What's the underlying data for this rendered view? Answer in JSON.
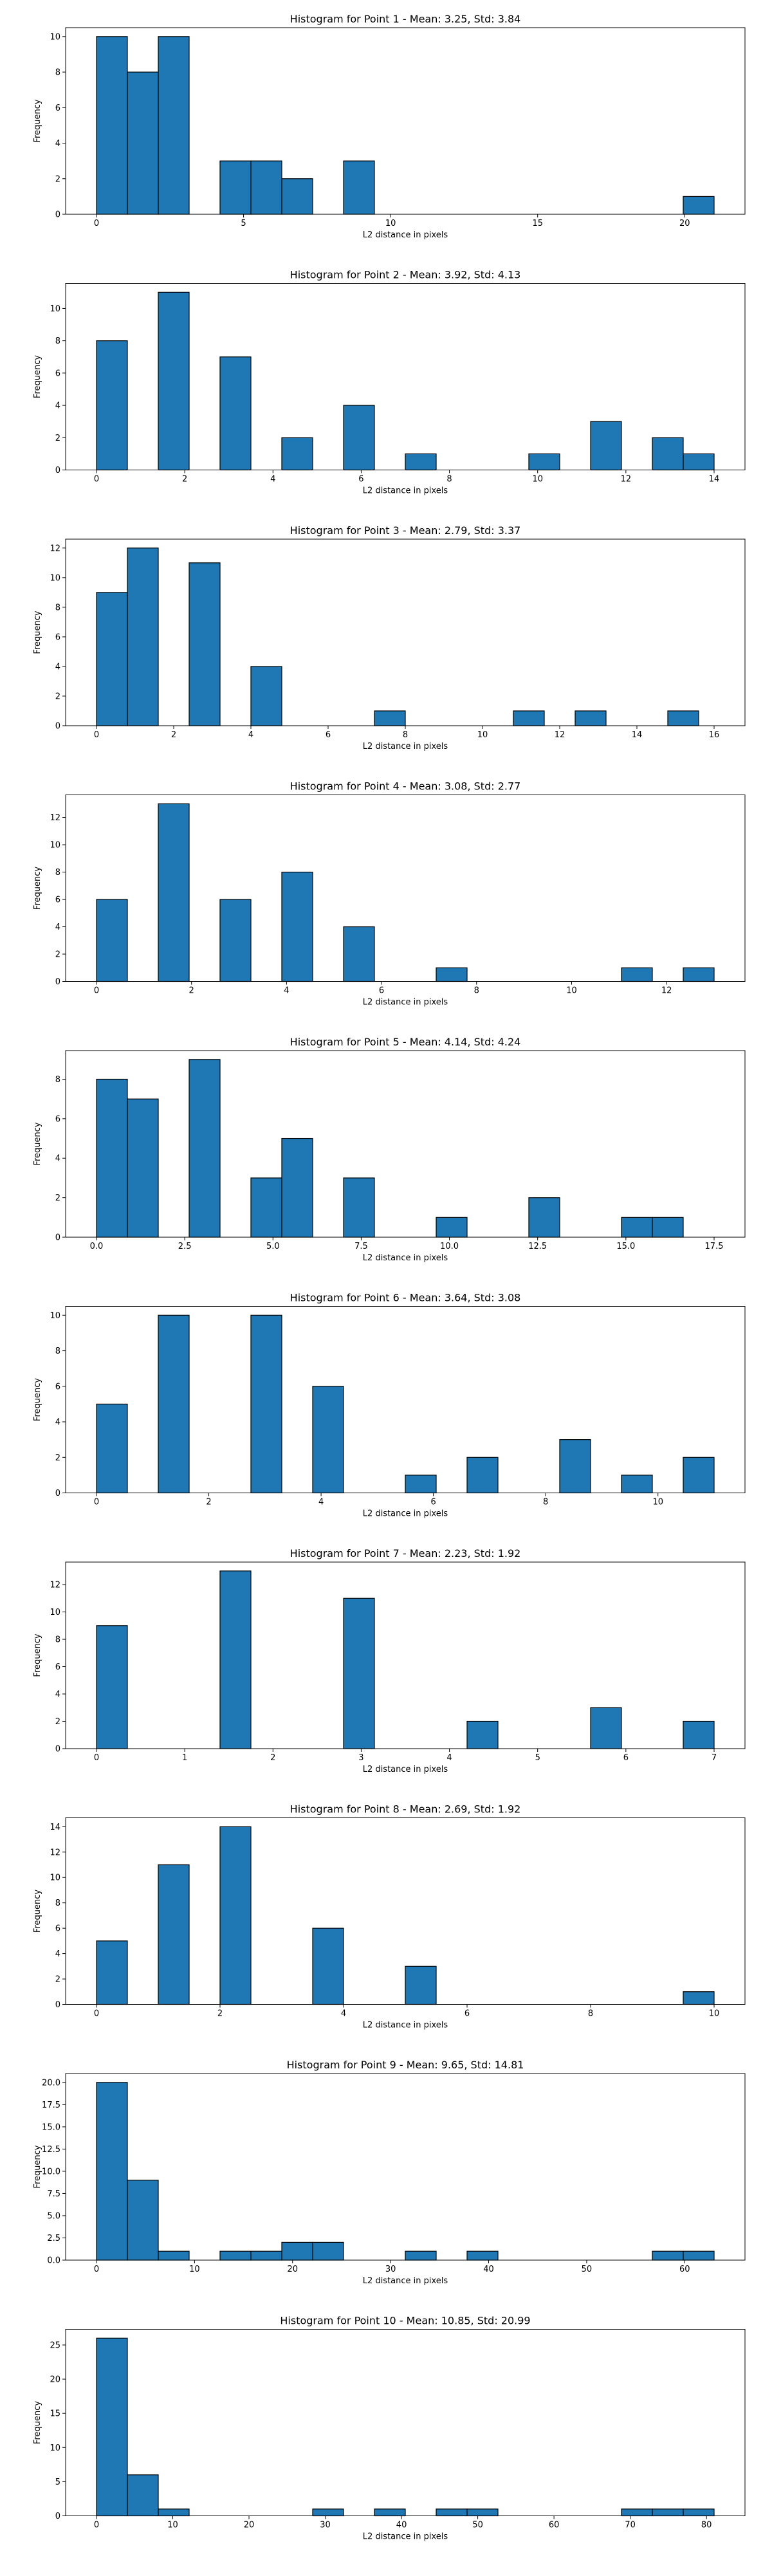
{
  "page": {
    "background": "#ffffff",
    "bar_color": "#1f77b4",
    "edge_color": "#000000"
  },
  "chart_data": [
    {
      "type": "bar",
      "title": "Histogram for Point 1 - Mean: 3.25, Std: 3.84",
      "xlabel": "L2 distance in pixels",
      "ylabel": "Frequency",
      "xlim": [
        -1.05,
        22.05
      ],
      "ylim": [
        0,
        10.5
      ],
      "xticks": [
        0,
        5,
        10,
        15,
        20
      ],
      "xtick_labels": [
        "0",
        "5",
        "10",
        "15",
        "20"
      ],
      "yticks": [
        0,
        2,
        4,
        6,
        8,
        10
      ],
      "ytick_labels": [
        "0",
        "2",
        "4",
        "6",
        "8",
        "10"
      ],
      "bin_width": 1.05,
      "bins": [
        [
          0,
          10
        ],
        [
          1.05,
          8
        ],
        [
          2.1,
          10
        ],
        [
          4.2,
          3
        ],
        [
          5.25,
          3
        ],
        [
          6.3,
          2
        ],
        [
          8.4,
          3
        ],
        [
          19.95,
          1
        ]
      ]
    },
    {
      "type": "bar",
      "title": "Histogram for Point 2 - Mean: 3.92, Std: 4.13",
      "xlabel": "L2 distance in pixels",
      "ylabel": "Frequency",
      "xlim": [
        -0.7,
        14.7
      ],
      "ylim": [
        0,
        11.55
      ],
      "xticks": [
        0,
        2,
        4,
        6,
        8,
        10,
        12,
        14
      ],
      "xtick_labels": [
        "0",
        "2",
        "4",
        "6",
        "8",
        "10",
        "12",
        "14"
      ],
      "yticks": [
        0,
        2,
        4,
        6,
        8,
        10
      ],
      "ytick_labels": [
        "0",
        "2",
        "4",
        "6",
        "8",
        "10"
      ],
      "bin_width": 0.7,
      "bins": [
        [
          0,
          8
        ],
        [
          1.4,
          11
        ],
        [
          2.8,
          7
        ],
        [
          4.2,
          2
        ],
        [
          5.6,
          4
        ],
        [
          7,
          1
        ],
        [
          9.8,
          1
        ],
        [
          11.2,
          3
        ],
        [
          12.6,
          2
        ],
        [
          13.3,
          1
        ]
      ]
    },
    {
      "type": "bar",
      "title": "Histogram for Point 3 - Mean: 2.79, Std: 3.37",
      "xlabel": "L2 distance in pixels",
      "ylabel": "Frequency",
      "xlim": [
        -0.8,
        16.8
      ],
      "ylim": [
        0,
        12.6
      ],
      "xticks": [
        0,
        2,
        4,
        6,
        8,
        10,
        12,
        14,
        16
      ],
      "xtick_labels": [
        "0",
        "2",
        "4",
        "6",
        "8",
        "10",
        "12",
        "14",
        "16"
      ],
      "yticks": [
        0,
        2,
        4,
        6,
        8,
        10,
        12
      ],
      "ytick_labels": [
        "0",
        "2",
        "4",
        "6",
        "8",
        "10",
        "12"
      ],
      "bin_width": 0.8,
      "bins": [
        [
          0,
          9
        ],
        [
          0.8,
          12
        ],
        [
          2.4,
          11
        ],
        [
          4,
          4
        ],
        [
          7.2,
          1
        ],
        [
          10.8,
          1
        ],
        [
          12.4,
          1
        ],
        [
          14.8,
          1
        ]
      ]
    },
    {
      "type": "bar",
      "title": "Histogram for Point 4 - Mean: 3.08, Std: 2.77",
      "xlabel": "L2 distance in pixels",
      "ylabel": "Frequency",
      "xlim": [
        -0.65,
        13.65
      ],
      "ylim": [
        0,
        13.65
      ],
      "xticks": [
        0,
        2,
        4,
        6,
        8,
        10,
        12
      ],
      "xtick_labels": [
        "0",
        "2",
        "4",
        "6",
        "8",
        "10",
        "12"
      ],
      "yticks": [
        0,
        2,
        4,
        6,
        8,
        10,
        12
      ],
      "ytick_labels": [
        "0",
        "2",
        "4",
        "6",
        "8",
        "10",
        "12"
      ],
      "bin_width": 0.65,
      "bins": [
        [
          0,
          6
        ],
        [
          1.3,
          13
        ],
        [
          2.6,
          6
        ],
        [
          3.9,
          8
        ],
        [
          5.2,
          4
        ],
        [
          7.15,
          1
        ],
        [
          11.05,
          1
        ],
        [
          12.35,
          1
        ]
      ]
    },
    {
      "type": "bar",
      "title": "Histogram for Point 5 - Mean: 4.14, Std: 4.24",
      "xlabel": "L2 distance in pixels",
      "ylabel": "Frequency",
      "xlim": [
        -0.875,
        18.375
      ],
      "ylim": [
        0,
        9.45
      ],
      "xticks": [
        0,
        2.5,
        5,
        7.5,
        10,
        12.5,
        15,
        17.5
      ],
      "xtick_labels": [
        "0.0",
        "2.5",
        "5.0",
        "7.5",
        "10.0",
        "12.5",
        "15.0",
        "17.5"
      ],
      "yticks": [
        0,
        2,
        4,
        6,
        8
      ],
      "ytick_labels": [
        "0",
        "2",
        "4",
        "6",
        "8"
      ],
      "bin_width": 0.875,
      "bins": [
        [
          0,
          8
        ],
        [
          0.875,
          7
        ],
        [
          2.625,
          9
        ],
        [
          4.375,
          3
        ],
        [
          5.25,
          5
        ],
        [
          7,
          3
        ],
        [
          9.625,
          1
        ],
        [
          12.25,
          2
        ],
        [
          14.875,
          1
        ],
        [
          15.75,
          1
        ]
      ]
    },
    {
      "type": "bar",
      "title": "Histogram for Point 6 - Mean: 3.64, Std: 3.08",
      "xlabel": "L2 distance in pixels",
      "ylabel": "Frequency",
      "xlim": [
        -0.55,
        11.55
      ],
      "ylim": [
        0,
        10.5
      ],
      "xticks": [
        0,
        2,
        4,
        6,
        8,
        10
      ],
      "xtick_labels": [
        "0",
        "2",
        "4",
        "6",
        "8",
        "10"
      ],
      "yticks": [
        0,
        2,
        4,
        6,
        8,
        10
      ],
      "ytick_labels": [
        "0",
        "2",
        "4",
        "6",
        "8",
        "10"
      ],
      "bin_width": 0.55,
      "bins": [
        [
          0,
          5
        ],
        [
          1.1,
          10
        ],
        [
          2.75,
          10
        ],
        [
          3.85,
          6
        ],
        [
          5.5,
          1
        ],
        [
          6.6,
          2
        ],
        [
          8.25,
          3
        ],
        [
          9.35,
          1
        ],
        [
          10.45,
          2
        ]
      ]
    },
    {
      "type": "bar",
      "title": "Histogram for Point 7 - Mean: 2.23, Std: 1.92",
      "xlabel": "L2 distance in pixels",
      "ylabel": "Frequency",
      "xlim": [
        -0.35,
        7.35
      ],
      "ylim": [
        0,
        13.65
      ],
      "xticks": [
        0,
        1,
        2,
        3,
        4,
        5,
        6,
        7
      ],
      "xtick_labels": [
        "0",
        "1",
        "2",
        "3",
        "4",
        "5",
        "6",
        "7"
      ],
      "yticks": [
        0,
        2,
        4,
        6,
        8,
        10,
        12
      ],
      "ytick_labels": [
        "0",
        "2",
        "4",
        "6",
        "8",
        "10",
        "12"
      ],
      "bin_width": 0.35,
      "bins": [
        [
          0,
          9
        ],
        [
          1.4,
          13
        ],
        [
          2.8,
          11
        ],
        [
          4.2,
          2
        ],
        [
          5.6,
          3
        ],
        [
          6.65,
          2
        ]
      ]
    },
    {
      "type": "bar",
      "title": "Histogram for Point 8 - Mean: 2.69, Std: 1.92",
      "xlabel": "L2 distance in pixels",
      "ylabel": "Frequency",
      "xlim": [
        -0.5,
        10.5
      ],
      "ylim": [
        0,
        14.7
      ],
      "xticks": [
        0,
        2,
        4,
        6,
        8,
        10
      ],
      "xtick_labels": [
        "0",
        "2",
        "4",
        "6",
        "8",
        "10"
      ],
      "yticks": [
        0,
        2,
        4,
        6,
        8,
        10,
        12,
        14
      ],
      "ytick_labels": [
        "0",
        "2",
        "4",
        "6",
        "8",
        "10",
        "12",
        "14"
      ],
      "bin_width": 0.5,
      "bins": [
        [
          0,
          5
        ],
        [
          1,
          11
        ],
        [
          2,
          14
        ],
        [
          3.5,
          6
        ],
        [
          5,
          3
        ],
        [
          9.5,
          1
        ]
      ]
    },
    {
      "type": "bar",
      "title": "Histogram for Point 9 - Mean: 9.65, Std: 14.81",
      "xlabel": "L2 distance in pixels",
      "ylabel": "Frequency",
      "xlim": [
        -3.15,
        66.15
      ],
      "ylim": [
        0,
        21
      ],
      "xticks": [
        0,
        10,
        20,
        30,
        40,
        50,
        60
      ],
      "xtick_labels": [
        "0",
        "10",
        "20",
        "30",
        "40",
        "50",
        "60"
      ],
      "yticks": [
        0,
        2.5,
        5,
        7.5,
        10,
        12.5,
        15,
        17.5,
        20
      ],
      "ytick_labels": [
        "0.0",
        "2.5",
        "5.0",
        "7.5",
        "10.0",
        "12.5",
        "15.0",
        "17.5",
        "20.0"
      ],
      "bin_width": 3.15,
      "bins": [
        [
          0,
          20
        ],
        [
          3.15,
          9
        ],
        [
          6.3,
          1
        ],
        [
          12.6,
          1
        ],
        [
          15.75,
          1
        ],
        [
          18.9,
          2
        ],
        [
          22.05,
          2
        ],
        [
          31.5,
          1
        ],
        [
          37.8,
          1
        ],
        [
          56.7,
          1
        ],
        [
          59.85,
          1
        ]
      ]
    },
    {
      "type": "bar",
      "title": "Histogram for Point 10 - Mean: 10.85, Std: 20.99",
      "xlabel": "L2 distance in pixels",
      "ylabel": "Frequency",
      "xlim": [
        -4.05,
        85.05
      ],
      "ylim": [
        0,
        27.3
      ],
      "xticks": [
        0,
        10,
        20,
        30,
        40,
        50,
        60,
        70,
        80
      ],
      "xtick_labels": [
        "0",
        "10",
        "20",
        "30",
        "40",
        "50",
        "60",
        "70",
        "80"
      ],
      "yticks": [
        0,
        5,
        10,
        15,
        20,
        25
      ],
      "ytick_labels": [
        "0",
        "5",
        "10",
        "15",
        "20",
        "25"
      ],
      "bin_width": 4.05,
      "bins": [
        [
          0,
          26
        ],
        [
          4.05,
          6
        ],
        [
          8.1,
          1
        ],
        [
          28.35,
          1
        ],
        [
          36.45,
          1
        ],
        [
          44.55,
          1
        ],
        [
          48.6,
          1
        ],
        [
          68.85,
          1
        ],
        [
          72.9,
          1
        ],
        [
          76.95,
          1
        ]
      ]
    }
  ]
}
